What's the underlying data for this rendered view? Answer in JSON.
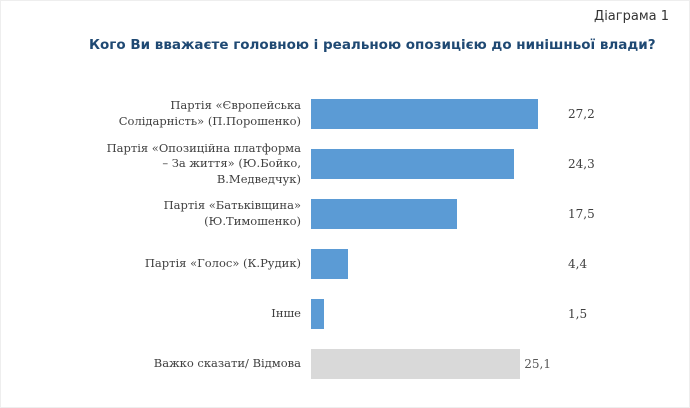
{
  "page": {
    "corner_label": "Діаграма 1",
    "title": "Кого Ви вважаєте головною і реальною опозицією до нинішньої влади?"
  },
  "colors": {
    "bar_blue": "#5B9BD5",
    "bar_gray": "#D9D9D9",
    "title_text": "#1F4973",
    "body_text": "#404040"
  },
  "chart_data": {
    "type": "bar",
    "orientation": "horizontal",
    "title": "Кого Ви вважаєте головною і реальною опозицією до нинішньої влади?",
    "xlabel": "",
    "ylabel": "",
    "xlim": [
      0,
      30
    ],
    "grid": false,
    "legend": false,
    "categories": [
      "Партія «Європейська Солідарність» (П.Порошенко)",
      "Партія «Опозиційна платформа – За життя» (Ю.Бойко, В.Медведчук)",
      "Партія «Батьківщина» (Ю.Тимошенко)",
      "Партія «Голос» (К.Рудик)",
      "Інше",
      "Важко сказати/ Відмова"
    ],
    "values": [
      27.2,
      24.3,
      17.5,
      4.4,
      1.5,
      25.1
    ],
    "value_labels": [
      "27,2",
      "24,3",
      "17,5",
      "4,4",
      "1,5",
      "25,1"
    ],
    "bar_colors": [
      "#5B9BD5",
      "#5B9BD5",
      "#5B9BD5",
      "#5B9BD5",
      "#5B9BD5",
      "#D9D9D9"
    ],
    "value_label_inside": [
      false,
      false,
      false,
      false,
      false,
      true
    ]
  }
}
